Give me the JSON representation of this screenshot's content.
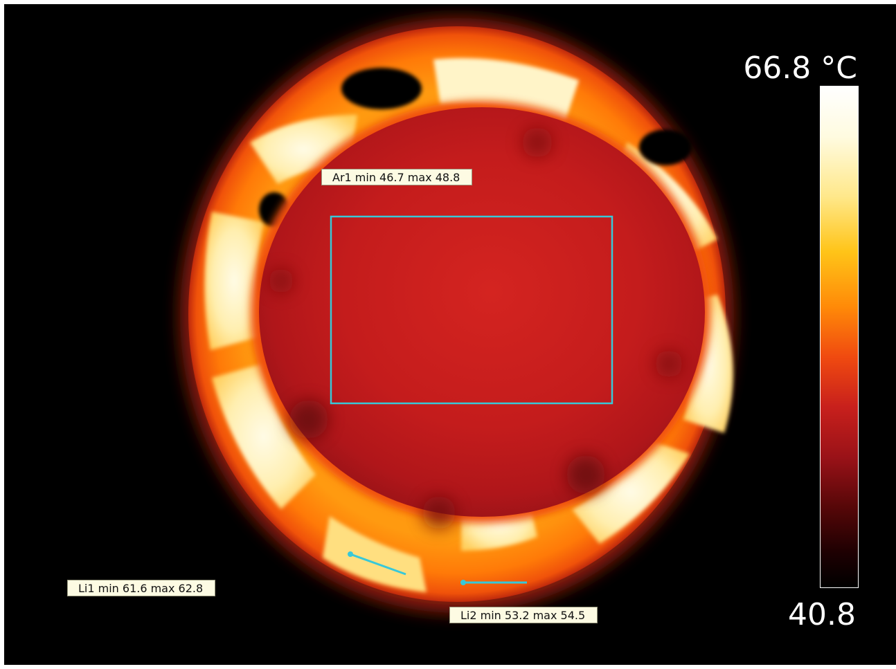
{
  "scale": {
    "max_label": "66.8 °C",
    "min_label": "40.8",
    "colors": [
      "#ffffff",
      "#ffe88a",
      "#ffc418",
      "#ff8a08",
      "#f04a10",
      "#c8201c",
      "#9a1218",
      "#560708",
      "#000000"
    ]
  },
  "measurements": {
    "area": {
      "label": "Ar1 min 46.7 max 48.8",
      "color": "#38c8d8"
    },
    "line1": {
      "label": "Li1 min 61.6 max 62.8",
      "color": "#38c8d8"
    },
    "line2": {
      "label": "Li2 min 53.2 max 54.5",
      "color": "#38c8d8"
    }
  }
}
